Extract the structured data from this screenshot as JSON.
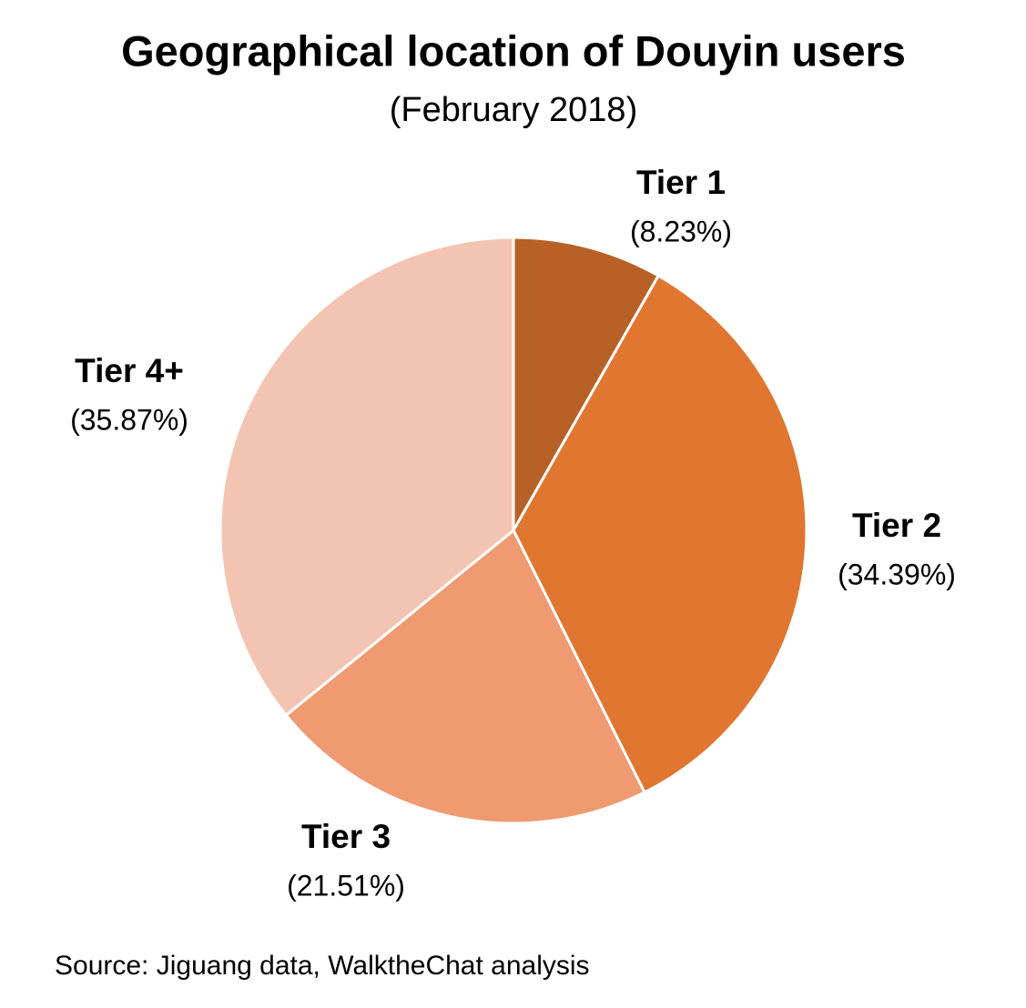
{
  "chart_data": {
    "type": "pie",
    "title": "Geographical location of Douyin users",
    "subtitle": "(February 2018)",
    "source": "Source: Jiguang data, WalktheChat analysis",
    "categories": [
      "Tier 1",
      "Tier 2",
      "Tier 3",
      "Tier 4+"
    ],
    "values": [
      8.23,
      34.39,
      21.51,
      35.87
    ],
    "value_labels": [
      "(8.23%)",
      "(34.39%)",
      "(21.51%)",
      "(35.87%)"
    ],
    "colors": [
      "#b86127",
      "#e07630",
      "#f09a72",
      "#f4c4b2"
    ]
  }
}
